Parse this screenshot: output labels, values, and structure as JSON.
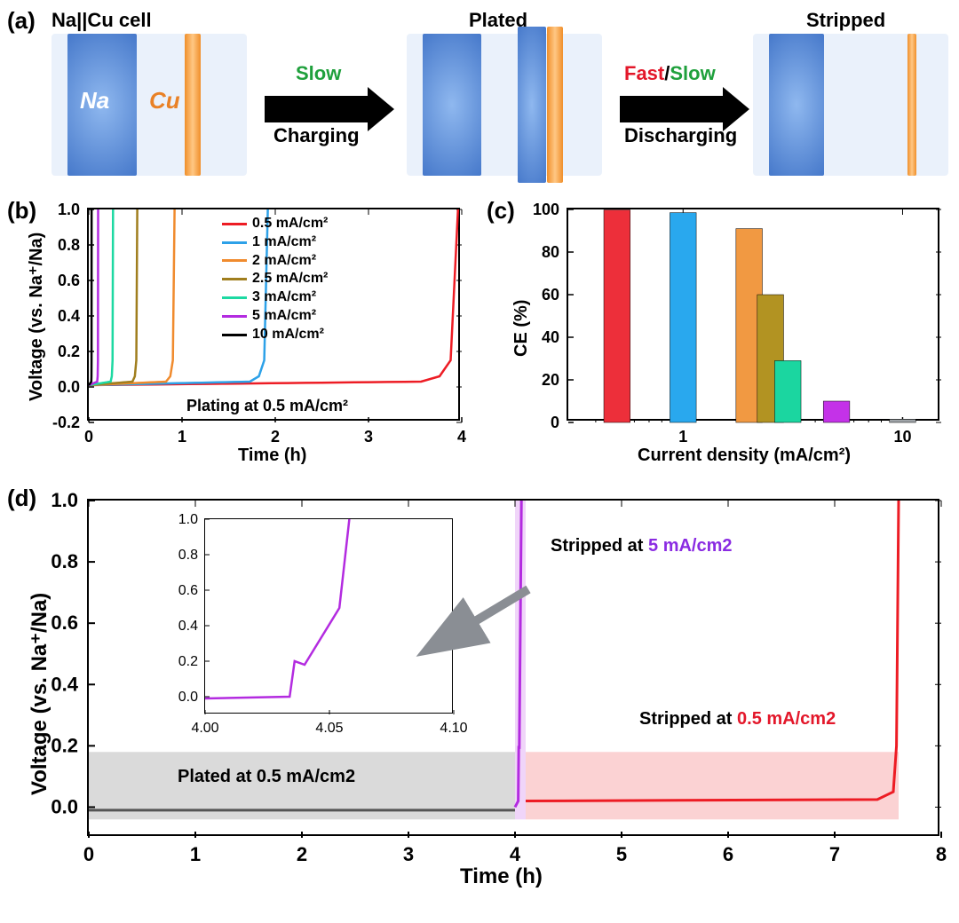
{
  "panel_a": {
    "label": "(a)",
    "state1_title": "Na||Cu cell",
    "state2_title": "Plated",
    "state3_title": "Stripped",
    "na_label": "Na",
    "cu_label": "Cu",
    "arrow1_top": "Slow",
    "arrow1_top_color": "#1fa03c",
    "arrow1_bottom": "Charging",
    "arrow2_fast": "Fast",
    "arrow2_fast_color": "#e3172a",
    "arrow2_slash": "/",
    "arrow2_slow": "Slow",
    "arrow2_slow_color": "#1fa03c",
    "arrow2_bottom": "Discharging",
    "na_color": "#4a7cd0",
    "cu_color": "#f29541",
    "bg_color": "#eaf1fb"
  },
  "panel_b": {
    "label": "(b)",
    "xlabel": "Time (h)",
    "ylabel": "Voltage (vs. Na⁺/Na)",
    "xlim": [
      0,
      4
    ],
    "ylim": [
      -0.2,
      1.0
    ],
    "xticks": [
      0,
      1,
      2,
      3,
      4
    ],
    "yticks": [
      -0.2,
      0.0,
      0.2,
      0.4,
      0.6,
      0.8,
      1.0
    ],
    "plating_note": "Plating at 0.5 mA/cm²",
    "series": [
      {
        "label": "0.5 mA/cm²",
        "color": "#ed1c24",
        "break_h": 3.96
      },
      {
        "label": "1 mA/cm²",
        "color": "#2da1e8",
        "break_h": 1.92
      },
      {
        "label": "2 mA/cm²",
        "color": "#f08b2e",
        "break_h": 0.92
      },
      {
        "label": "2.5 mA/cm²",
        "color": "#a07e1e",
        "break_h": 0.52
      },
      {
        "label": "3 mA/cm²",
        "color": "#1dd9a2",
        "break_h": 0.26
      },
      {
        "label": "5 mA/cm²",
        "color": "#b32be0",
        "break_h": 0.1
      },
      {
        "label": "10 mA/cm²",
        "color": "#000000",
        "break_h": 0.03
      }
    ]
  },
  "panel_c": {
    "label": "(c)",
    "xlabel": "Current density (mA/cm²)",
    "ylabel": "CE (%)",
    "xlim_log": [
      0.3,
      15
    ],
    "ylim": [
      0,
      100
    ],
    "xticks": [
      1,
      10
    ],
    "yticks": [
      0,
      20,
      40,
      60,
      80,
      100
    ],
    "bars": [
      {
        "x": 0.5,
        "y": 99.8,
        "color": "#ed2f3a"
      },
      {
        "x": 1,
        "y": 98.5,
        "color": "#29a8ee"
      },
      {
        "x": 2,
        "y": 91,
        "color": "#f19942"
      },
      {
        "x": 2.5,
        "y": 60,
        "color": "#b29322"
      },
      {
        "x": 3,
        "y": 29,
        "color": "#1bd6a0"
      },
      {
        "x": 5,
        "y": 10,
        "color": "#c432e8"
      },
      {
        "x": 10,
        "y": 1.5,
        "color": "#9fa4a8"
      }
    ],
    "bar_log_width": 0.12
  },
  "panel_d": {
    "label": "(d)",
    "xlabel": "Time (h)",
    "ylabel": "Voltage (vs. Na⁺/Na)",
    "xlim": [
      0,
      8
    ],
    "ylim": [
      -0.1,
      1.0
    ],
    "xticks": [
      0,
      1,
      2,
      3,
      4,
      5,
      6,
      7,
      8
    ],
    "yticks": [
      0.0,
      0.2,
      0.4,
      0.6,
      0.8,
      1.0
    ],
    "plated_band": {
      "start": 0,
      "end": 4.0,
      "height": 0.18,
      "color": "rgba(150,150,150,0.35)"
    },
    "strip5_band": {
      "start": 4.0,
      "end": 4.1,
      "color": "rgba(179,43,224,0.20)"
    },
    "strip05_band": {
      "start": 4.1,
      "end": 7.6,
      "height": 0.18,
      "color": "rgba(237,28,36,0.20)"
    },
    "plated_label": "Plated at 0.5 mA/cm2",
    "strip5_label": {
      "pre": "Stripped at ",
      "val": "5 mA/cm2",
      "val_color": "#8a2be2"
    },
    "strip05_label": {
      "pre": "Stripped at ",
      "val": "0.5 mA/cm2",
      "val_color": "#e3172a"
    },
    "series": {
      "plate": {
        "color": "#555555",
        "end": 4.0,
        "v": 0.0
      },
      "strip5": {
        "color": "#b32be0",
        "end_h": 4.06
      },
      "strip05": {
        "color": "#ed1c24",
        "end_h": 7.6
      }
    },
    "inset": {
      "xlim": [
        4.0,
        4.1
      ],
      "ylim": [
        -0.1,
        1.0
      ],
      "xticks": [
        4.0,
        4.05,
        4.1
      ],
      "yticks": [
        0.0,
        0.2,
        0.4,
        0.6,
        0.8,
        1.0
      ],
      "break_h": 4.034,
      "rise_h": 4.058,
      "color": "#b32be0"
    }
  }
}
